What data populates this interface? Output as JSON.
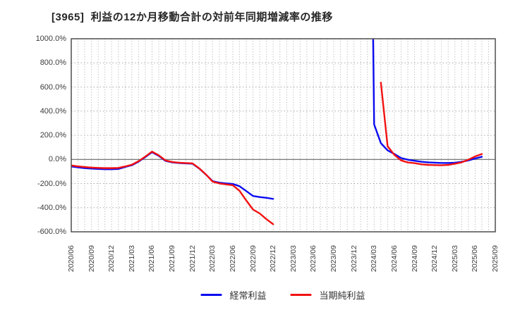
{
  "chart_data": {
    "type": "line",
    "title": "[3965]  利益の12か月移動合計の対前年同期増減率の推移",
    "xlabel": "",
    "ylabel": "",
    "ylim": [
      -600,
      1000
    ],
    "ytick_step_percent": 200,
    "ytick_labels": [
      "1000.0%",
      "800.0%",
      "600.0%",
      "400.0%",
      "200.0%",
      "0.0%",
      "-200.0%",
      "-400.0%",
      "-600.0%"
    ],
    "x_axis_start": "2020/06",
    "x_axis_end": "2025/09",
    "x_tick_labels": [
      "2020/06",
      "2020/09",
      "2020/12",
      "2021/03",
      "2021/06",
      "2021/09",
      "2021/12",
      "2022/03",
      "2022/06",
      "2022/09",
      "2022/12",
      "2023/03",
      "2023/06",
      "2023/09",
      "2023/12",
      "2024/03",
      "2024/06",
      "2024/09",
      "2024/12",
      "2025/03",
      "2025/06",
      "2025/09"
    ],
    "grid": true,
    "legend_position": "bottom",
    "background": "#ffffff",
    "axis_color": "#4d4d4d",
    "grid_color": "#a9a9a9",
    "zero_line_color": "#666666",
    "months": [
      "2020/06",
      "2020/07",
      "2020/08",
      "2020/09",
      "2020/10",
      "2020/11",
      "2020/12",
      "2021/01",
      "2021/02",
      "2021/03",
      "2021/04",
      "2021/05",
      "2021/06",
      "2021/07",
      "2021/08",
      "2021/09",
      "2021/10",
      "2021/11",
      "2021/12",
      "2022/01",
      "2022/02",
      "2022/03",
      "2022/04",
      "2022/05",
      "2022/06",
      "2022/07",
      "2022/08",
      "2022/09",
      "2022/10",
      "2022/11",
      "2022/12",
      "2023/01",
      "2023/02",
      "2023/03",
      "2023/04",
      "2023/05",
      "2023/06",
      "2023/07",
      "2023/08",
      "2023/09",
      "2023/10",
      "2023/11",
      "2023/12",
      "2024/01",
      "2024/02",
      "2024/03",
      "2024/04",
      "2024/05",
      "2024/06",
      "2024/07",
      "2024/08",
      "2024/09",
      "2024/10",
      "2024/11",
      "2024/12",
      "2025/01",
      "2025/02",
      "2025/03",
      "2025/04",
      "2025/05",
      "2025/06",
      "2025/07"
    ],
    "series": [
      {
        "name": "経常利益",
        "color": "#0b0bf0",
        "values": [
          -58,
          -66,
          -72,
          -76,
          -79,
          -81,
          -81,
          -79,
          -62,
          -48,
          -18,
          20,
          60,
          30,
          -12,
          -24,
          -30,
          -33,
          -35,
          -75,
          -125,
          -180,
          -193,
          -199,
          -203,
          -222,
          -262,
          -303,
          -312,
          -318,
          -327,
          null,
          null,
          null,
          null,
          null,
          null,
          null,
          null,
          null,
          null,
          null,
          null,
          null,
          5000,
          290,
          135,
          75,
          45,
          12,
          -2,
          -11,
          -19,
          -24,
          -27,
          -29,
          -29,
          -27,
          -20,
          -8,
          8,
          22
        ]
      },
      {
        "name": "当期純利益",
        "color": "#f21212",
        "values": [
          -50,
          -57,
          -63,
          -67,
          -70,
          -72,
          -72,
          -70,
          -58,
          -44,
          -14,
          24,
          65,
          34,
          -8,
          -21,
          -27,
          -30,
          -32,
          -73,
          -124,
          -184,
          -199,
          -207,
          -214,
          -260,
          -340,
          -415,
          -448,
          -495,
          -537,
          null,
          null,
          null,
          null,
          null,
          null,
          null,
          null,
          null,
          null,
          null,
          null,
          null,
          null,
          null,
          637,
          110,
          38,
          -8,
          -25,
          -31,
          -40,
          -45,
          -47,
          -48,
          -45,
          -36,
          -24,
          -2,
          25,
          45
        ]
      }
    ]
  }
}
